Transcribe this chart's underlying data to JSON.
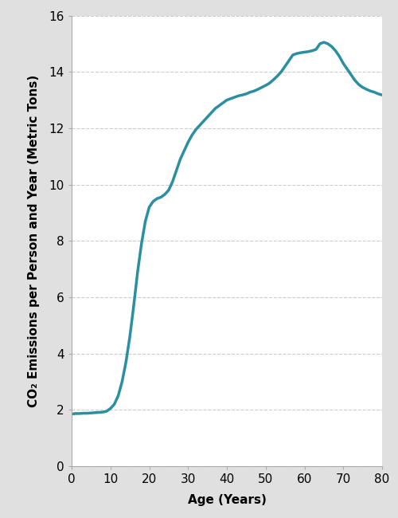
{
  "ages": [
    0,
    1,
    2,
    3,
    4,
    5,
    6,
    7,
    8,
    9,
    10,
    11,
    12,
    13,
    14,
    15,
    16,
    17,
    18,
    19,
    20,
    21,
    22,
    23,
    24,
    25,
    26,
    27,
    28,
    29,
    30,
    31,
    32,
    33,
    34,
    35,
    36,
    37,
    38,
    39,
    40,
    41,
    42,
    43,
    44,
    45,
    46,
    47,
    48,
    49,
    50,
    51,
    52,
    53,
    54,
    55,
    56,
    57,
    58,
    59,
    60,
    61,
    62,
    63,
    64,
    65,
    66,
    67,
    68,
    69,
    70,
    71,
    72,
    73,
    74,
    75,
    76,
    77,
    78,
    79,
    80
  ],
  "values": [
    1.85,
    1.87,
    1.87,
    1.88,
    1.88,
    1.89,
    1.9,
    1.91,
    1.92,
    1.95,
    2.05,
    2.2,
    2.5,
    3.0,
    3.7,
    4.6,
    5.7,
    6.9,
    7.9,
    8.7,
    9.2,
    9.4,
    9.5,
    9.55,
    9.65,
    9.8,
    10.1,
    10.5,
    10.9,
    11.2,
    11.5,
    11.75,
    11.95,
    12.1,
    12.25,
    12.4,
    12.55,
    12.7,
    12.8,
    12.9,
    13.0,
    13.05,
    13.1,
    13.15,
    13.18,
    13.22,
    13.28,
    13.32,
    13.38,
    13.45,
    13.52,
    13.6,
    13.72,
    13.85,
    14.0,
    14.2,
    14.4,
    14.6,
    14.65,
    14.68,
    14.7,
    14.72,
    14.75,
    14.8,
    15.0,
    15.05,
    15.0,
    14.9,
    14.75,
    14.55,
    14.3,
    14.1,
    13.9,
    13.7,
    13.55,
    13.45,
    13.38,
    13.32,
    13.28,
    13.22,
    13.18
  ],
  "line_color": "#2a8fa0",
  "line_width": 2.5,
  "ylabel": "CO₂ Emissions per Person and Year (Metric Tons)",
  "xlabel": "Age (Years)",
  "xlim": [
    0,
    80
  ],
  "ylim": [
    0,
    16
  ],
  "xticks": [
    0,
    10,
    20,
    30,
    40,
    50,
    60,
    70,
    80
  ],
  "yticks": [
    0,
    2,
    4,
    6,
    8,
    10,
    12,
    14,
    16
  ],
  "figure_background_color": "#e0e0e0",
  "plot_background_color": "#ffffff",
  "grid_color": "#cccccc",
  "tick_label_fontsize": 11,
  "axis_label_fontsize": 11,
  "spine_color": "#aaaaaa"
}
